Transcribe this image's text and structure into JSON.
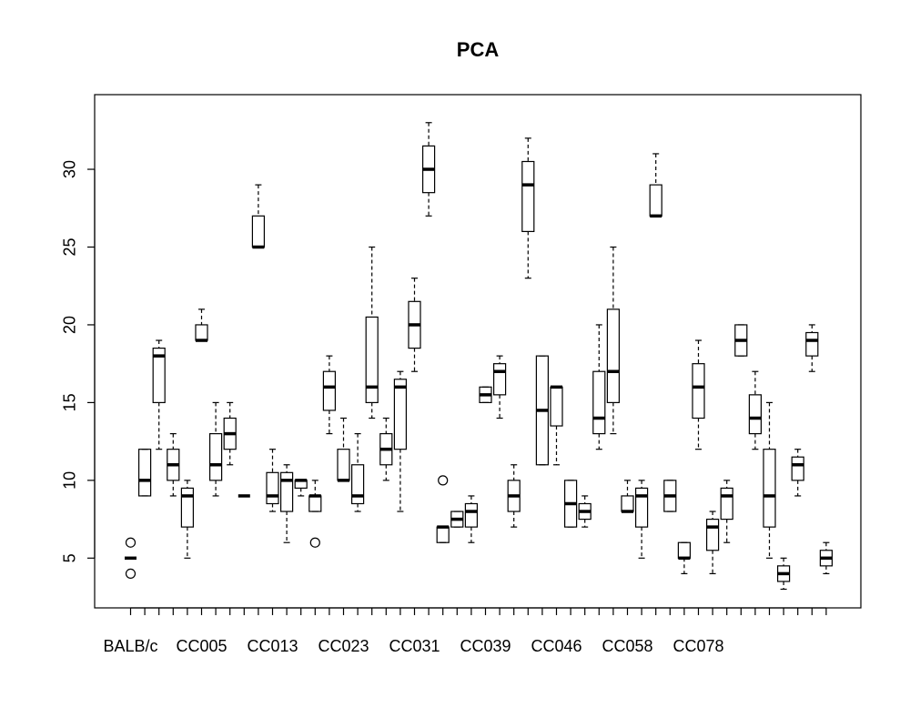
{
  "chart_data": {
    "type": "boxplot",
    "title": "PCA",
    "xlabel": "",
    "ylabel": "",
    "ylim": [
      1.8,
      34.8
    ],
    "y_ticks": [
      5,
      10,
      15,
      20,
      25,
      30
    ],
    "x_tick_labels_shown": [
      "BALB/c",
      "CC005",
      "CC013",
      "CC023",
      "CC031",
      "CC039",
      "CC046",
      "CC058",
      "CC078"
    ],
    "x_tick_label_positions": [
      1,
      6,
      11,
      16,
      21,
      26,
      31,
      36,
      41
    ],
    "grid": false,
    "legend": "none",
    "boxes": [
      {
        "pos": 1,
        "min": 5,
        "q1": 5,
        "median": 5,
        "q3": 5,
        "max": 5,
        "outliers": [
          4,
          6
        ]
      },
      {
        "pos": 2,
        "min": 9,
        "q1": 9,
        "median": 10,
        "q3": 12,
        "max": 12,
        "outliers": []
      },
      {
        "pos": 3,
        "min": 12,
        "q1": 15,
        "median": 18,
        "q3": 18.5,
        "max": 19,
        "outliers": []
      },
      {
        "pos": 4,
        "min": 9,
        "q1": 10,
        "median": 11,
        "q3": 12,
        "max": 13,
        "outliers": []
      },
      {
        "pos": 5,
        "min": 5,
        "q1": 7,
        "median": 9,
        "q3": 9.5,
        "max": 10,
        "outliers": []
      },
      {
        "pos": 6,
        "min": 19,
        "q1": 19,
        "median": 19,
        "q3": 20,
        "max": 21,
        "outliers": []
      },
      {
        "pos": 7,
        "min": 9,
        "q1": 10,
        "median": 11,
        "q3": 13,
        "max": 15,
        "outliers": []
      },
      {
        "pos": 8,
        "min": 11,
        "q1": 12,
        "median": 13,
        "q3": 14,
        "max": 15,
        "outliers": []
      },
      {
        "pos": 9,
        "min": 9,
        "q1": 9,
        "median": 9,
        "q3": 9,
        "max": 9,
        "outliers": []
      },
      {
        "pos": 10,
        "min": 25,
        "q1": 25,
        "median": 25,
        "q3": 27,
        "max": 29,
        "outliers": []
      },
      {
        "pos": 11,
        "min": 8,
        "q1": 8.5,
        "median": 9,
        "q3": 10.5,
        "max": 12,
        "outliers": []
      },
      {
        "pos": 12,
        "min": 6,
        "q1": 8,
        "median": 10,
        "q3": 10.5,
        "max": 11,
        "outliers": []
      },
      {
        "pos": 13,
        "min": 9,
        "q1": 9.5,
        "median": 10,
        "q3": 10,
        "max": 10,
        "outliers": []
      },
      {
        "pos": 14,
        "min": 8,
        "q1": 8,
        "median": 9,
        "q3": 9,
        "max": 10,
        "outliers": [
          6
        ]
      },
      {
        "pos": 15,
        "min": 13,
        "q1": 14.5,
        "median": 16,
        "q3": 17,
        "max": 18,
        "outliers": []
      },
      {
        "pos": 16,
        "min": 10,
        "q1": 10,
        "median": 10,
        "q3": 12,
        "max": 14,
        "outliers": []
      },
      {
        "pos": 17,
        "min": 8,
        "q1": 8.5,
        "median": 9,
        "q3": 11,
        "max": 13,
        "outliers": []
      },
      {
        "pos": 18,
        "min": 14,
        "q1": 15,
        "median": 16,
        "q3": 20.5,
        "max": 25,
        "outliers": []
      },
      {
        "pos": 19,
        "min": 10,
        "q1": 11,
        "median": 12,
        "q3": 13,
        "max": 14,
        "outliers": []
      },
      {
        "pos": 20,
        "min": 8,
        "q1": 12,
        "median": 16,
        "q3": 16.5,
        "max": 17,
        "outliers": []
      },
      {
        "pos": 21,
        "min": 17,
        "q1": 18.5,
        "median": 20,
        "q3": 21.5,
        "max": 23,
        "outliers": []
      },
      {
        "pos": 22,
        "min": 27,
        "q1": 28.5,
        "median": 30,
        "q3": 31.5,
        "max": 33,
        "outliers": []
      },
      {
        "pos": 23,
        "min": 6,
        "q1": 6,
        "median": 7,
        "q3": 7,
        "max": 7,
        "outliers": [
          10
        ]
      },
      {
        "pos": 24,
        "min": 7,
        "q1": 7,
        "median": 7.5,
        "q3": 8,
        "max": 8,
        "outliers": []
      },
      {
        "pos": 25,
        "min": 6,
        "q1": 7,
        "median": 8,
        "q3": 8.5,
        "max": 9,
        "outliers": []
      },
      {
        "pos": 26,
        "min": 15,
        "q1": 15,
        "median": 15.5,
        "q3": 16,
        "max": 16,
        "outliers": []
      },
      {
        "pos": 27,
        "min": 14,
        "q1": 15.5,
        "median": 17,
        "q3": 17.5,
        "max": 18,
        "outliers": []
      },
      {
        "pos": 28,
        "min": 7,
        "q1": 8,
        "median": 9,
        "q3": 10,
        "max": 11,
        "outliers": []
      },
      {
        "pos": 29,
        "min": 23,
        "q1": 26,
        "median": 29,
        "q3": 30.5,
        "max": 32,
        "outliers": []
      },
      {
        "pos": 30,
        "min": 11,
        "q1": 11,
        "median": 14.5,
        "q3": 18,
        "max": 18,
        "outliers": []
      },
      {
        "pos": 31,
        "min": 11,
        "q1": 13.5,
        "median": 16,
        "q3": 16,
        "max": 16,
        "outliers": []
      },
      {
        "pos": 32,
        "min": 7,
        "q1": 7,
        "median": 8.5,
        "q3": 10,
        "max": 10,
        "outliers": []
      },
      {
        "pos": 33,
        "min": 7,
        "q1": 7.5,
        "median": 8,
        "q3": 8.5,
        "max": 9,
        "outliers": []
      },
      {
        "pos": 34,
        "min": 12,
        "q1": 13,
        "median": 14,
        "q3": 17,
        "max": 20,
        "outliers": []
      },
      {
        "pos": 35,
        "min": 13,
        "q1": 15,
        "median": 17,
        "q3": 21,
        "max": 25,
        "outliers": []
      },
      {
        "pos": 36,
        "min": 8,
        "q1": 8,
        "median": 8,
        "q3": 9,
        "max": 10,
        "outliers": []
      },
      {
        "pos": 37,
        "min": 5,
        "q1": 7,
        "median": 9,
        "q3": 9.5,
        "max": 10,
        "outliers": []
      },
      {
        "pos": 38,
        "min": 27,
        "q1": 27,
        "median": 27,
        "q3": 29,
        "max": 31,
        "outliers": []
      },
      {
        "pos": 39,
        "min": 8,
        "q1": 8,
        "median": 9,
        "q3": 10,
        "max": 10,
        "outliers": []
      },
      {
        "pos": 40,
        "min": 4,
        "q1": 5,
        "median": 5,
        "q3": 6,
        "max": 6,
        "outliers": []
      },
      {
        "pos": 41,
        "min": 12,
        "q1": 14,
        "median": 16,
        "q3": 17.5,
        "max": 19,
        "outliers": []
      },
      {
        "pos": 42,
        "min": 4,
        "q1": 5.5,
        "median": 7,
        "q3": 7.5,
        "max": 8,
        "outliers": []
      },
      {
        "pos": 43,
        "min": 6,
        "q1": 7.5,
        "median": 9,
        "q3": 9.5,
        "max": 10,
        "outliers": []
      },
      {
        "pos": 44,
        "min": 18,
        "q1": 18,
        "median": 19,
        "q3": 20,
        "max": 20,
        "outliers": []
      },
      {
        "pos": 45,
        "min": 12,
        "q1": 13,
        "median": 14,
        "q3": 15.5,
        "max": 17,
        "outliers": []
      },
      {
        "pos": 46,
        "min": 5,
        "q1": 7,
        "median": 9,
        "q3": 12,
        "max": 15,
        "outliers": []
      },
      {
        "pos": 47,
        "min": 3,
        "q1": 3.5,
        "median": 4,
        "q3": 4.5,
        "max": 5,
        "outliers": []
      },
      {
        "pos": 48,
        "min": 9,
        "q1": 10,
        "median": 11,
        "q3": 11.5,
        "max": 12,
        "outliers": []
      },
      {
        "pos": 49,
        "min": 17,
        "q1": 18,
        "median": 19,
        "q3": 19.5,
        "max": 20,
        "outliers": []
      },
      {
        "pos": 50,
        "min": 4,
        "q1": 4.5,
        "median": 5,
        "q3": 5.5,
        "max": 6,
        "outliers": []
      }
    ]
  }
}
